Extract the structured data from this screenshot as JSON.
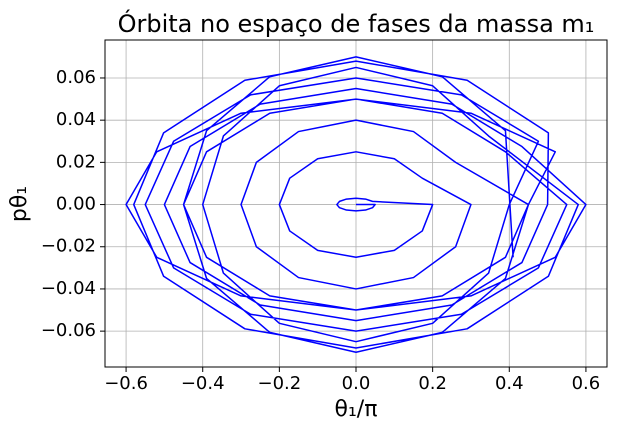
{
  "chart_data": {
    "type": "line",
    "title": "Órbita no espaço de fases da massa m₁",
    "x_label": "θ₁/π",
    "y_label": "pθ₁",
    "xlim": [
      -0.655,
      0.655
    ],
    "ylim": [
      -0.077,
      0.078
    ],
    "xticks": [
      {
        "value": -0.6,
        "label": "−0.6"
      },
      {
        "value": -0.4,
        "label": "−0.4"
      },
      {
        "value": -0.2,
        "label": "−0.2"
      },
      {
        "value": 0,
        "label": "0.0"
      },
      0.2,
      0.4,
      0.6
    ],
    "yticks": [
      {
        "value": -0.06,
        "label": "−0.06"
      },
      {
        "value": -0.04,
        "label": "−0.04"
      },
      {
        "value": -0.02,
        "label": "−0.02"
      },
      {
        "value": 0,
        "label": "0.00"
      },
      0.02,
      0.04,
      0.06
    ],
    "grid": true,
    "series": [
      {
        "color": "#0000ff",
        "x": [
          0,
          0.05,
          0.043,
          0.025,
          0,
          -0.025,
          -0.043,
          -0.05,
          -0.043,
          -0.025,
          0,
          0.025,
          0.043,
          0.2,
          0.173,
          0.1,
          0,
          -0.1,
          -0.173,
          -0.2,
          -0.173,
          -0.1,
          0,
          0.1,
          0.173,
          0.3,
          0.26,
          0.15,
          0,
          -0.15,
          -0.26,
          -0.3,
          -0.26,
          -0.15,
          0,
          0.15,
          0.26,
          0.45,
          0.39,
          0.225,
          0,
          -0.225,
          -0.39,
          -0.45,
          -0.39,
          -0.225,
          0,
          0.225,
          0.39,
          0.55,
          0.476,
          0.275,
          0,
          -0.275,
          -0.476,
          -0.55,
          -0.476,
          -0.275,
          0,
          0.275,
          0.476,
          0.4,
          0.346,
          0.2,
          0,
          -0.2,
          -0.346,
          -0.4,
          -0.346,
          -0.2,
          0,
          0.2,
          0.346,
          0.58,
          0.502,
          0.29,
          0,
          -0.29,
          -0.502,
          -0.58,
          -0.502,
          -0.29,
          0,
          0.29,
          0.502,
          0.5,
          0.433,
          0.25,
          0,
          -0.25,
          -0.433,
          -0.5,
          -0.433,
          -0.25,
          0,
          0.25,
          0.433,
          0.6,
          0.52,
          0.3,
          0,
          -0.3,
          -0.52,
          -0.6,
          -0.52,
          -0.3,
          0,
          0.3,
          0.52,
          0.45,
          0.39,
          0.225,
          0,
          -0.225,
          -0.39,
          -0.45,
          -0.39,
          -0.225,
          0,
          0.225,
          0.39,
          0.41
        ],
        "values": [
          0,
          0,
          -0.0015,
          -0.0026,
          -0.003,
          -0.0026,
          -0.0015,
          0,
          0.0015,
          0.0026,
          0.003,
          0.0026,
          0.0015,
          0,
          -0.0125,
          -0.0217,
          -0.025,
          -0.0217,
          -0.0125,
          0,
          0.0125,
          0.0217,
          0.025,
          0.0217,
          0.0125,
          0,
          -0.02,
          -0.0346,
          -0.04,
          -0.0346,
          -0.02,
          0,
          0.02,
          0.0346,
          0.04,
          0.0346,
          0.02,
          0,
          -0.025,
          -0.0433,
          -0.05,
          -0.0433,
          -0.025,
          0,
          0.025,
          0.0433,
          0.05,
          0.0433,
          0.025,
          0,
          -0.03,
          -0.052,
          -0.06,
          -0.052,
          -0.03,
          0,
          0.03,
          0.052,
          0.06,
          0.052,
          0.03,
          0,
          -0.0325,
          -0.0563,
          -0.065,
          -0.0563,
          -0.0325,
          0,
          0.0325,
          0.0563,
          0.065,
          0.0563,
          0.0325,
          0,
          -0.034,
          -0.0589,
          -0.068,
          -0.0589,
          -0.034,
          0,
          0.034,
          0.0589,
          0.068,
          0.0589,
          0.034,
          0,
          -0.0275,
          -0.0476,
          -0.055,
          -0.0476,
          -0.0275,
          0,
          0.0275,
          0.0476,
          0.055,
          0.0476,
          0.0275,
          0,
          -0.025,
          -0.0433,
          -0.05,
          -0.0433,
          -0.025,
          0,
          0.025,
          0.0433,
          0.05,
          0.0433,
          0.025,
          0,
          -0.035,
          -0.0606,
          -0.07,
          -0.0606,
          -0.035,
          0,
          0.035,
          0.0606,
          0.07,
          0.0606,
          0.035,
          -0.025
        ]
      }
    ]
  }
}
